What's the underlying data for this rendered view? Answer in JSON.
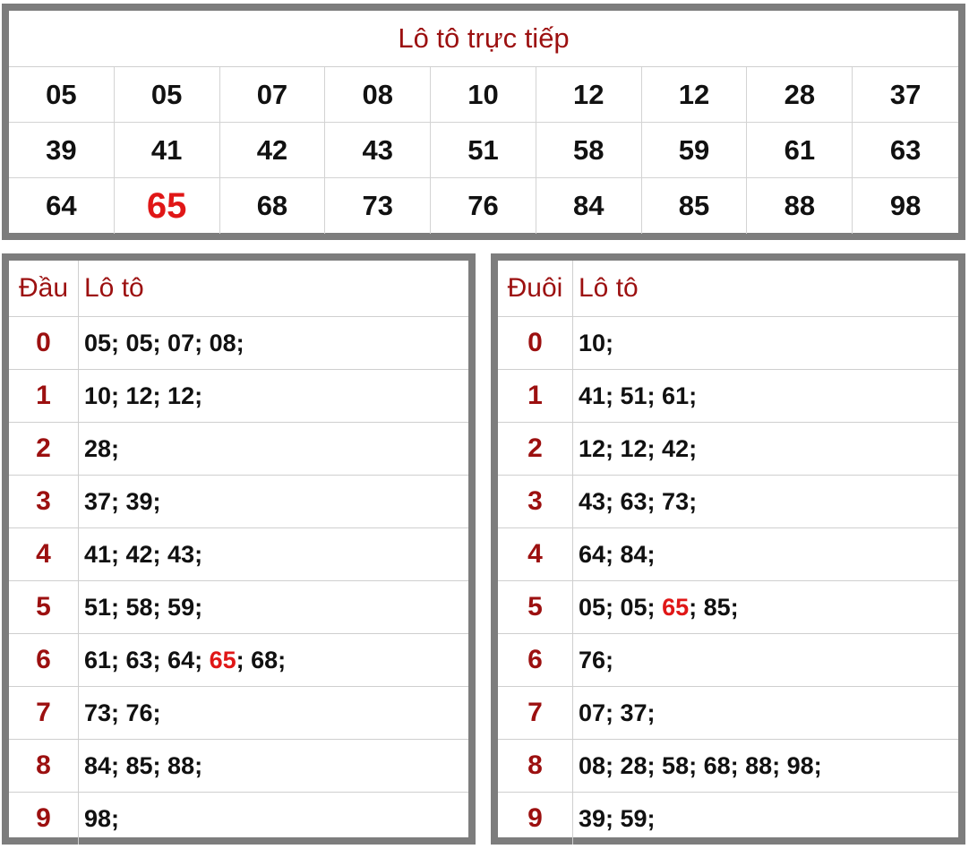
{
  "title": "Lô tô trực tiếp",
  "highlight_color": "#e01717",
  "header_color": "#9c1010",
  "numbers": [
    [
      "05",
      "05",
      "07",
      "08",
      "10",
      "12",
      "12",
      "28",
      "37"
    ],
    [
      "39",
      "41",
      "42",
      "43",
      "51",
      "58",
      "59",
      "61",
      "63"
    ],
    [
      "64",
      "65",
      "68",
      "73",
      "76",
      "84",
      "85",
      "88",
      "98"
    ]
  ],
  "highlight_number": "65",
  "dau_table": {
    "col1": "Đầu",
    "col2": "Lô tô",
    "rows": [
      {
        "key": "0",
        "values": [
          {
            "t": "05; 05; 07; 08;"
          }
        ]
      },
      {
        "key": "1",
        "values": [
          {
            "t": "10; 12; 12;"
          }
        ]
      },
      {
        "key": "2",
        "values": [
          {
            "t": "28;"
          }
        ]
      },
      {
        "key": "3",
        "values": [
          {
            "t": "37; 39;"
          }
        ]
      },
      {
        "key": "4",
        "values": [
          {
            "t": "41; 42; 43;"
          }
        ]
      },
      {
        "key": "5",
        "values": [
          {
            "t": "51; 58; 59;"
          }
        ]
      },
      {
        "key": "6",
        "values": [
          {
            "t": "61; 63; 64; "
          },
          {
            "t": "65",
            "hl": true
          },
          {
            "t": "; 68;"
          }
        ]
      },
      {
        "key": "7",
        "values": [
          {
            "t": "73; 76;"
          }
        ]
      },
      {
        "key": "8",
        "values": [
          {
            "t": "84; 85; 88;"
          }
        ]
      },
      {
        "key": "9",
        "values": [
          {
            "t": "98;"
          }
        ]
      }
    ]
  },
  "duoi_table": {
    "col1": "Đuôi",
    "col2": "Lô tô",
    "rows": [
      {
        "key": "0",
        "values": [
          {
            "t": "10;"
          }
        ]
      },
      {
        "key": "1",
        "values": [
          {
            "t": "41; 51; 61;"
          }
        ]
      },
      {
        "key": "2",
        "values": [
          {
            "t": "12; 12; 42;"
          }
        ]
      },
      {
        "key": "3",
        "values": [
          {
            "t": "43; 63; 73;"
          }
        ]
      },
      {
        "key": "4",
        "values": [
          {
            "t": "64; 84;"
          }
        ]
      },
      {
        "key": "5",
        "values": [
          {
            "t": "05; 05; "
          },
          {
            "t": "65",
            "hl": true
          },
          {
            "t": "; 85;"
          }
        ]
      },
      {
        "key": "6",
        "values": [
          {
            "t": "76;"
          }
        ]
      },
      {
        "key": "7",
        "values": [
          {
            "t": "07; 37;"
          }
        ]
      },
      {
        "key": "8",
        "values": [
          {
            "t": "08; 28; 58; 68; 88; 98;"
          }
        ]
      },
      {
        "key": "9",
        "values": [
          {
            "t": "39; 59;"
          }
        ]
      }
    ]
  }
}
